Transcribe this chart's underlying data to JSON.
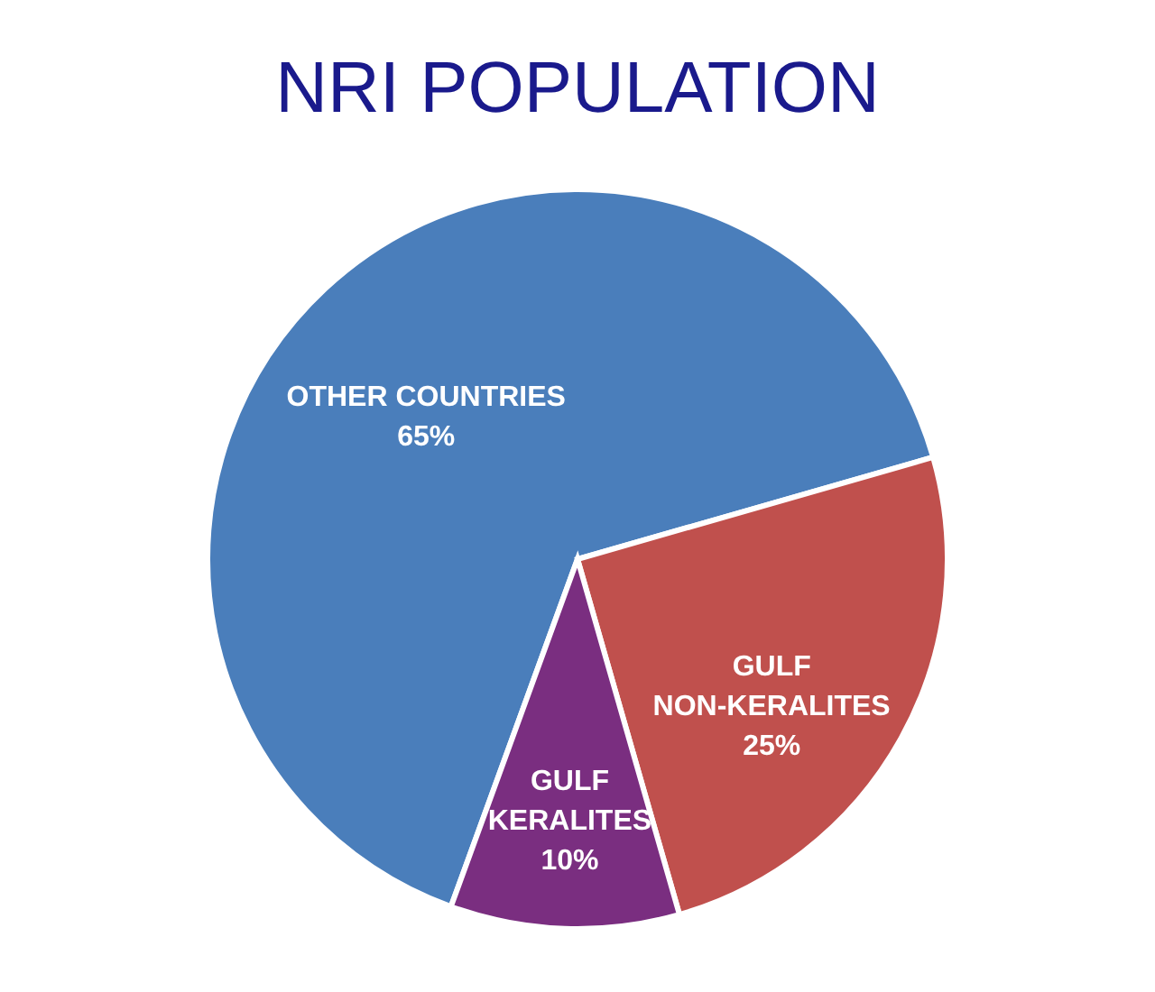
{
  "chart_data": {
    "type": "pie",
    "title": "NRI POPULATION",
    "categories": [
      "OTHER COUNTRIES",
      "GULF NON-KERALITES",
      "GULF KERALITES"
    ],
    "values": [
      65,
      25,
      10
    ],
    "colors": [
      "#4a7ebb",
      "#c0504d",
      "#7a2e80"
    ],
    "value_labels": [
      "65%",
      "25%",
      "10%"
    ]
  }
}
